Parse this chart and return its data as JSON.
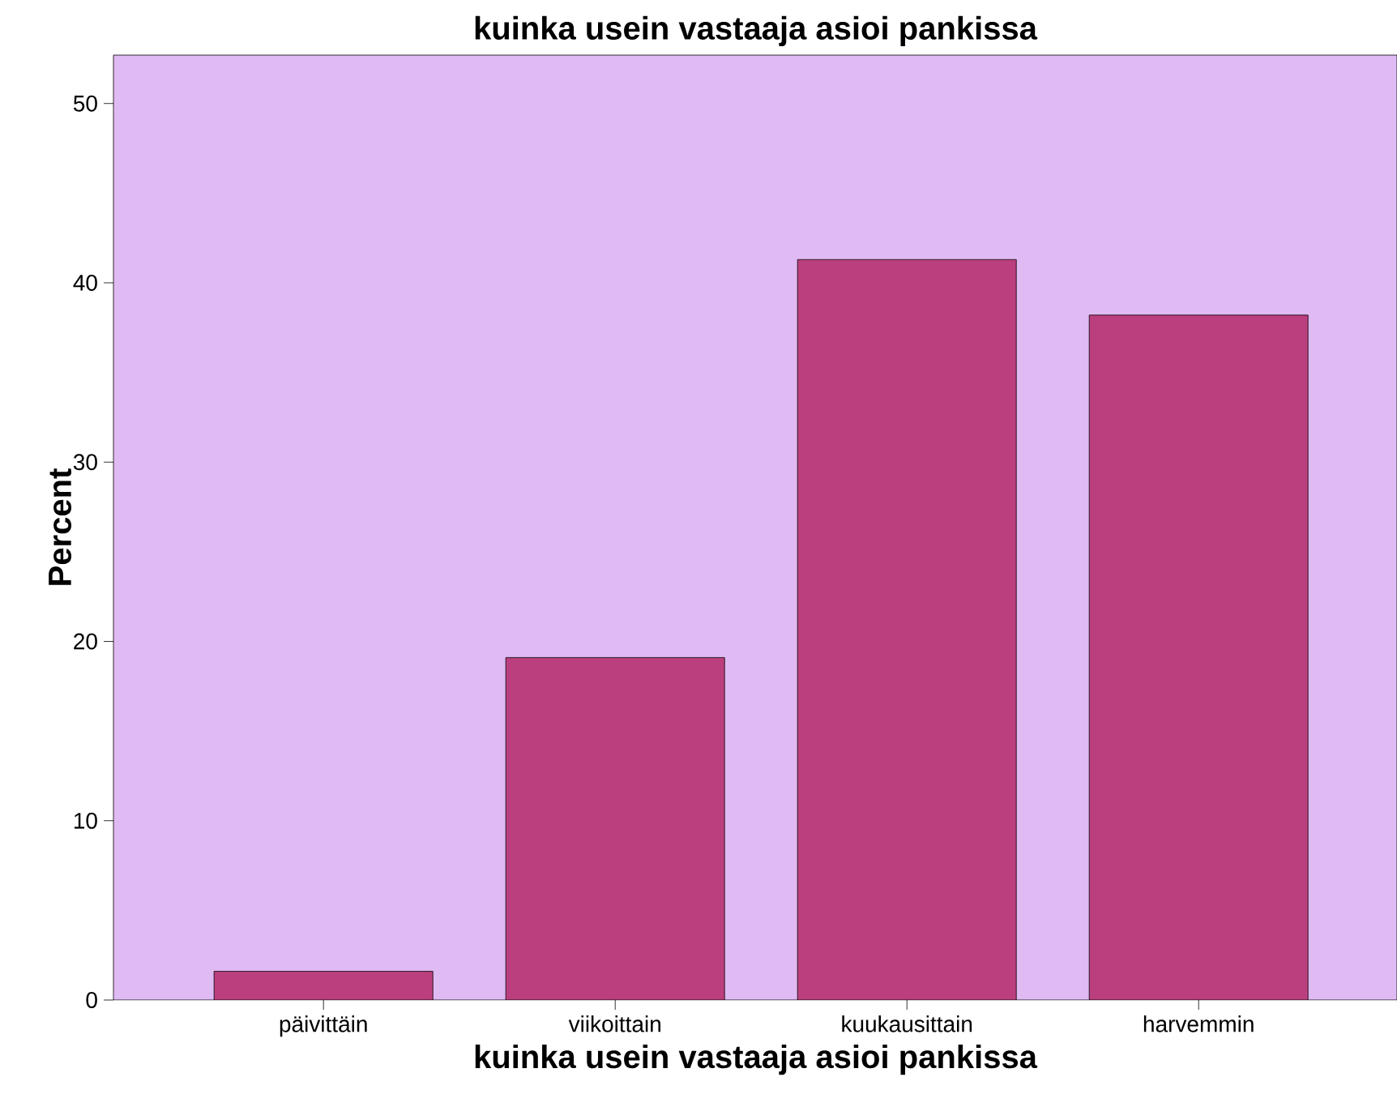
{
  "chart_data": {
    "type": "bar",
    "title": "kuinka usein vastaaja asioi pankissa",
    "xlabel": "kuinka usein vastaaja asioi pankissa",
    "ylabel": "Percent",
    "categories": [
      "päivittäin",
      "viikoittain",
      "kuukausittain",
      "harvemmin"
    ],
    "values": [
      1.6,
      19.1,
      41.3,
      38.2
    ],
    "color": "#bb3f7e",
    "ylim": [
      0,
      52.7
    ],
    "yticks": [
      0,
      10,
      20,
      30,
      40,
      50
    ],
    "grid": false
  }
}
